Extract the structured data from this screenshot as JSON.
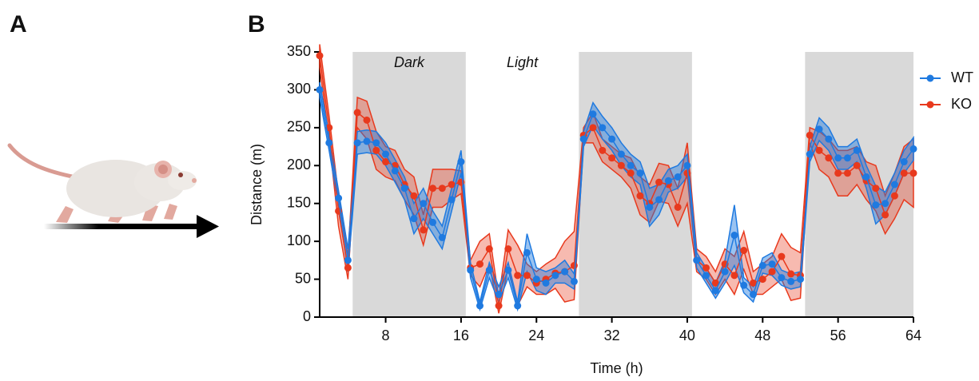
{
  "panels": {
    "a": "A",
    "b": "B"
  },
  "chart_data": {
    "type": "line_band",
    "xlabel": "Time (h)",
    "ylabel": "Distance (m)",
    "xlim": [
      1,
      64
    ],
    "xticks": [
      8,
      16,
      24,
      32,
      40,
      48,
      56,
      64
    ],
    "ylim": [
      0,
      350
    ],
    "yticks": [
      0,
      50,
      100,
      150,
      200,
      250,
      300,
      350
    ],
    "dark_periods": [
      [
        4.5,
        16.5
      ],
      [
        28.5,
        40.5
      ],
      [
        52.5,
        64
      ]
    ],
    "period_labels": [
      "Dark",
      "Light"
    ],
    "legend": "top-right",
    "x": [
      1,
      2,
      3,
      4,
      5,
      6,
      7,
      8,
      9,
      10,
      11,
      12,
      13,
      14,
      15,
      16,
      17,
      18,
      19,
      20,
      21,
      22,
      23,
      24,
      25,
      26,
      27,
      28,
      29,
      30,
      31,
      32,
      33,
      34,
      35,
      36,
      37,
      38,
      39,
      40,
      41,
      42,
      43,
      44,
      45,
      46,
      47,
      48,
      49,
      50,
      51,
      52,
      53,
      54,
      55,
      56,
      57,
      58,
      59,
      60,
      61,
      62,
      63,
      64
    ],
    "series": [
      {
        "name": "KO",
        "color": "#e8391d",
        "values": [
          345,
          250,
          140,
          65,
          270,
          260,
          220,
          205,
          200,
          175,
          160,
          115,
          170,
          170,
          175,
          178,
          65,
          70,
          90,
          15,
          90,
          55,
          55,
          45,
          50,
          58,
          60,
          68,
          240,
          250,
          220,
          210,
          200,
          190,
          160,
          150,
          178,
          175,
          145,
          190,
          75,
          65,
          45,
          70,
          55,
          88,
          45,
          50,
          60,
          80,
          57,
          55,
          240,
          220,
          210,
          190,
          190,
          200,
          180,
          170,
          135,
          160,
          190,
          190
        ],
        "errors": [
          15,
          15,
          20,
          15,
          20,
          25,
          25,
          20,
          20,
          20,
          25,
          20,
          25,
          25,
          20,
          15,
          10,
          30,
          20,
          10,
          25,
          40,
          15,
          15,
          20,
          20,
          40,
          45,
          10,
          20,
          15,
          15,
          15,
          20,
          25,
          25,
          25,
          25,
          25,
          40,
          15,
          15,
          15,
          20,
          25,
          25,
          15,
          20,
          20,
          30,
          35,
          30,
          10,
          25,
          25,
          30,
          30,
          25,
          25,
          30,
          25,
          30,
          35,
          45
        ]
      },
      {
        "name": "WT",
        "color": "#1f7ae0",
        "values": [
          300,
          230,
          157,
          75,
          230,
          232,
          230,
          215,
          193,
          170,
          130,
          150,
          125,
          105,
          155,
          205,
          62,
          15,
          62,
          30,
          62,
          15,
          85,
          50,
          45,
          55,
          60,
          47,
          235,
          268,
          250,
          235,
          215,
          200,
          190,
          145,
          155,
          180,
          185,
          200,
          75,
          55,
          35,
          60,
          108,
          42,
          30,
          68,
          70,
          52,
          47,
          50,
          215,
          248,
          235,
          210,
          210,
          220,
          185,
          148,
          150,
          175,
          205,
          222
        ],
        "errors": [
          10,
          10,
          10,
          15,
          15,
          15,
          15,
          15,
          15,
          15,
          20,
          20,
          15,
          15,
          15,
          15,
          10,
          5,
          10,
          10,
          10,
          5,
          25,
          15,
          15,
          10,
          15,
          10,
          10,
          15,
          15,
          15,
          15,
          15,
          15,
          25,
          20,
          15,
          15,
          15,
          10,
          10,
          10,
          15,
          40,
          10,
          10,
          10,
          15,
          10,
          10,
          10,
          10,
          15,
          15,
          15,
          15,
          15,
          15,
          25,
          15,
          15,
          15,
          15
        ]
      }
    ]
  }
}
